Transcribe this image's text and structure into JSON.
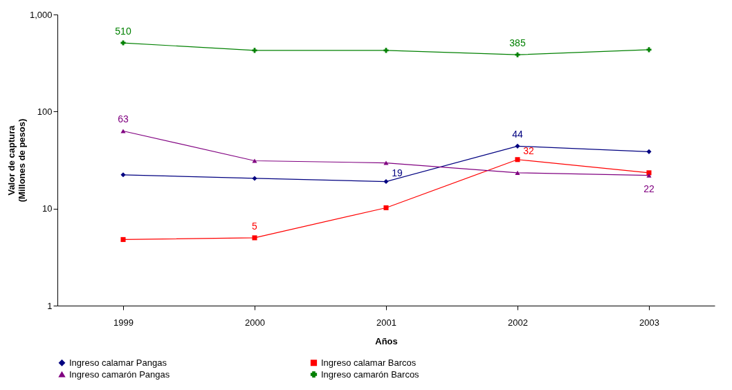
{
  "chart_data": {
    "type": "line",
    "xlabel": "Años",
    "ylabel": "Valor de captura\n(Millones de pesos)",
    "categories": [
      "1999",
      "2000",
      "2001",
      "2002",
      "2003"
    ],
    "log": true,
    "ylim": [
      1,
      1000
    ],
    "yticks": [
      1,
      10,
      100,
      {
        "value": 1000,
        "label": "1,000"
      }
    ],
    "grid": false,
    "legend": "bottom",
    "line_style": "solid",
    "series": [
      {
        "name": "Ingreso calamar Pangas",
        "color": "#000080",
        "marker": "diamond",
        "values": [
          22.3,
          20.5,
          19,
          44,
          38.6
        ],
        "value_labels": [
          null,
          null,
          "19",
          "44",
          null
        ]
      },
      {
        "name": "Ingreso calamar Barcos",
        "color": "#ff0000",
        "marker": "square",
        "values": [
          4.8,
          5,
          10.2,
          32,
          23.4
        ],
        "value_labels": [
          null,
          "5",
          null,
          "32",
          null
        ]
      },
      {
        "name": "Ingreso camarón Pangas",
        "color": "#800080",
        "marker": "triangle",
        "values": [
          63,
          31.1,
          29.6,
          23.4,
          22
        ],
        "value_labels": [
          "63",
          null,
          null,
          null,
          "22"
        ]
      },
      {
        "name": "Ingreso camarón Barcos",
        "color": "#008000",
        "marker": "cross",
        "values": [
          510,
          427,
          427,
          385,
          434
        ],
        "value_labels": [
          "510",
          null,
          null,
          "385",
          null
        ]
      }
    ]
  }
}
